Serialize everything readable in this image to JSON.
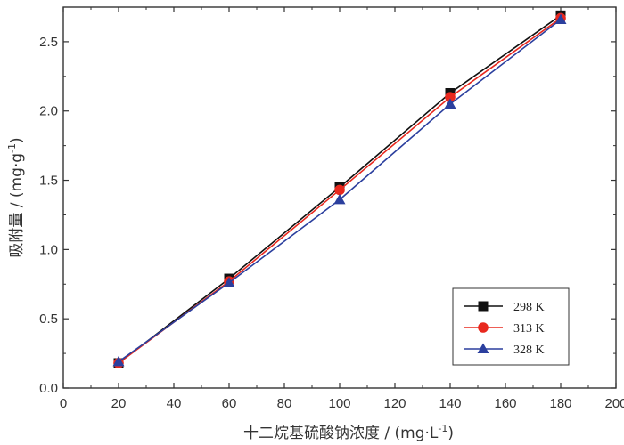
{
  "chart_data": {
    "type": "line",
    "xlabel": "十二烷基硫酸钠浓度 / (mg·L",
    "xlabel_sup": "-1",
    "xlabel_close": ")",
    "ylabel": "吸附量 / (mg·g",
    "ylabel_sup": "-1",
    "ylabel_close": ")",
    "xlim": [
      0,
      200
    ],
    "ylim": [
      0.0,
      2.75
    ],
    "xticks": [
      0,
      20,
      40,
      60,
      80,
      100,
      120,
      140,
      160,
      180,
      200
    ],
    "xtick_labels": [
      "0",
      "20",
      "40",
      "60",
      "80",
      "100",
      "120",
      "140",
      "160",
      "180",
      "200"
    ],
    "yticks": [
      0.0,
      0.5,
      1.0,
      1.5,
      2.0,
      2.5
    ],
    "ytick_labels": [
      "0.0",
      "0.5",
      "1.0",
      "1.5",
      "2.0",
      "2.5"
    ],
    "x": [
      20,
      60,
      100,
      140,
      180
    ],
    "series": [
      {
        "name": "298 K",
        "values": [
          0.18,
          0.79,
          1.45,
          2.13,
          2.69
        ],
        "color": "#111111",
        "marker": "square"
      },
      {
        "name": "313 K",
        "values": [
          0.18,
          0.77,
          1.43,
          2.1,
          2.67
        ],
        "color": "#e8281e",
        "marker": "circle"
      },
      {
        "name": "328 K",
        "values": [
          0.19,
          0.76,
          1.36,
          2.05,
          2.66
        ],
        "color": "#2b3f9e",
        "marker": "triangle"
      }
    ],
    "legend_position": "bottom-right",
    "grid": false
  }
}
